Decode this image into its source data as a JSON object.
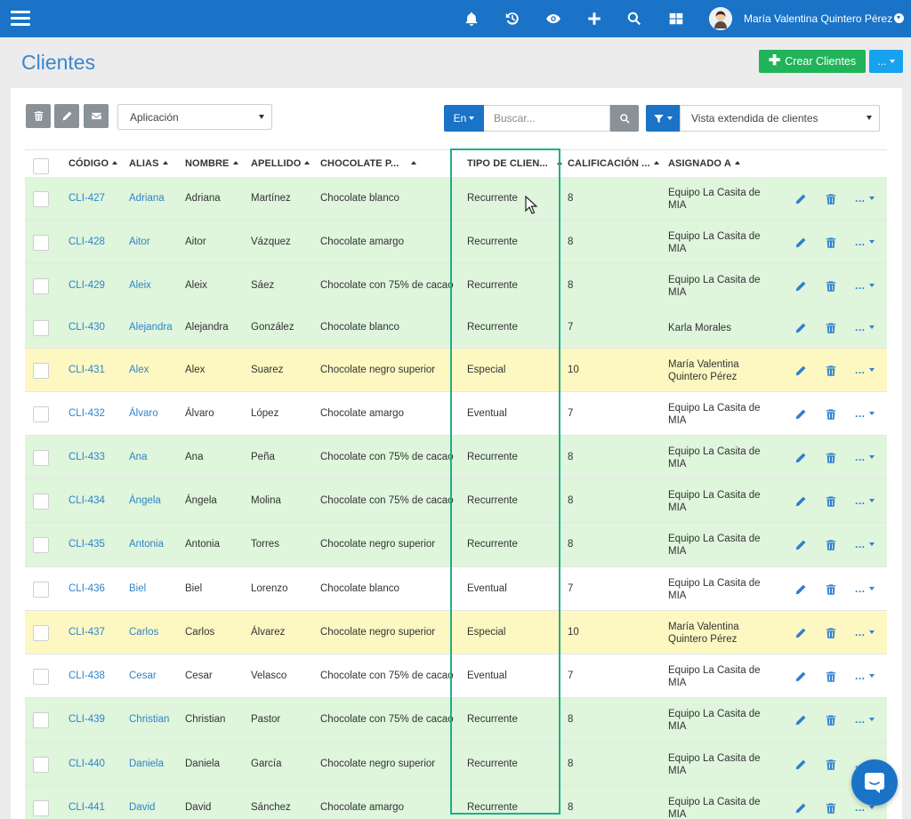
{
  "colors": {
    "topbar": "#1a73c6",
    "accent_green": "#21b35a",
    "row_green": "#dff5dc",
    "row_yellow": "#fdf8c2",
    "highlight": "#1fae8b"
  },
  "topbar": {
    "icons": [
      "bell-icon",
      "history-icon",
      "eye-icon",
      "plus-icon",
      "search-icon",
      "grid-icon"
    ],
    "user_name": "María Valentina Quintero Pérez"
  },
  "header": {
    "title": "Clientes",
    "create_label": "Crear Clientes",
    "more_label": "..."
  },
  "toolbar": {
    "app_select": "Aplicación",
    "search_scope": "En",
    "search_placeholder": "Buscar...",
    "view_select": "Vista extendida de clientes"
  },
  "table": {
    "columns": [
      "CÓDIGO",
      "ALIAS",
      "NOMBRE",
      "APELLIDO",
      "CHOCOLATE P...",
      "TIPO DE CLIEN...",
      "CALIFICACIÓN ...",
      "ASIGNADO A"
    ],
    "more_label": "...",
    "rows": [
      {
        "code": "CLI-427",
        "alias": "Adriana",
        "nombre": "Adriana",
        "apellido": "Martínez",
        "chocolate": "Chocolate blanco",
        "tipo": "Recurrente",
        "calif": "8",
        "asignado": "Equipo La Casita de MIA",
        "color": "green"
      },
      {
        "code": "CLI-428",
        "alias": "Aitor",
        "nombre": "Aitor",
        "apellido": "Vázquez",
        "chocolate": "Chocolate amargo",
        "tipo": "Recurrente",
        "calif": "8",
        "asignado": "Equipo La Casita de MIA",
        "color": "green"
      },
      {
        "code": "CLI-429",
        "alias": "Aleix",
        "nombre": "Aleix",
        "apellido": "Sáez",
        "chocolate": "Chocolate con 75% de cacao",
        "tipo": "Recurrente",
        "calif": "8",
        "asignado": "Equipo La Casita de MIA",
        "color": "green"
      },
      {
        "code": "CLI-430",
        "alias": "Alejandra",
        "nombre": "Alejandra",
        "apellido": "González",
        "chocolate": "Chocolate blanco",
        "tipo": "Recurrente",
        "calif": "7",
        "asignado": "Karla Morales",
        "color": "green"
      },
      {
        "code": "CLI-431",
        "alias": "Alex",
        "nombre": "Alex",
        "apellido": "Suarez",
        "chocolate": "Chocolate negro superior",
        "tipo": "Especial",
        "calif": "10",
        "asignado": "María Valentina Quintero Pérez",
        "color": "yellow"
      },
      {
        "code": "CLI-432",
        "alias": "Álvaro",
        "nombre": "Álvaro",
        "apellido": "López",
        "chocolate": "Chocolate amargo",
        "tipo": "Eventual",
        "calif": "7",
        "asignado": "Equipo La Casita de MIA",
        "color": "white"
      },
      {
        "code": "CLI-433",
        "alias": "Ana",
        "nombre": "Ana",
        "apellido": "Peña",
        "chocolate": "Chocolate con 75% de cacao",
        "tipo": "Recurrente",
        "calif": "8",
        "asignado": "Equipo La Casita de MIA",
        "color": "green"
      },
      {
        "code": "CLI-434",
        "alias": "Ángela",
        "nombre": "Ángela",
        "apellido": "Molina",
        "chocolate": "Chocolate con 75% de cacao",
        "tipo": "Recurrente",
        "calif": "8",
        "asignado": "Equipo La Casita de MIA",
        "color": "green"
      },
      {
        "code": "CLI-435",
        "alias": "Antonia",
        "nombre": "Antonia",
        "apellido": "Torres",
        "chocolate": "Chocolate negro superior",
        "tipo": "Recurrente",
        "calif": "8",
        "asignado": "Equipo La Casita de MIA",
        "color": "green"
      },
      {
        "code": "CLI-436",
        "alias": "Biel",
        "nombre": "Biel",
        "apellido": "Lorenzo",
        "chocolate": "Chocolate blanco",
        "tipo": "Eventual",
        "calif": "7",
        "asignado": "Equipo La Casita de MIA",
        "color": "white"
      },
      {
        "code": "CLI-437",
        "alias": "Carlos",
        "nombre": "Carlos",
        "apellido": "Álvarez",
        "chocolate": "Chocolate negro superior",
        "tipo": "Especial",
        "calif": "10",
        "asignado": "María Valentina Quintero Pérez",
        "color": "yellow"
      },
      {
        "code": "CLI-438",
        "alias": "Cesar",
        "nombre": "Cesar",
        "apellido": "Velasco",
        "chocolate": "Chocolate con 75% de cacao",
        "tipo": "Eventual",
        "calif": "7",
        "asignado": "Equipo La Casita de MIA",
        "color": "white"
      },
      {
        "code": "CLI-439",
        "alias": "Christian",
        "nombre": "Christian",
        "apellido": "Pastor",
        "chocolate": "Chocolate con 75% de cacao",
        "tipo": "Recurrente",
        "calif": "8",
        "asignado": "Equipo La Casita de MIA",
        "color": "green"
      },
      {
        "code": "CLI-440",
        "alias": "Daniela",
        "nombre": "Daniela",
        "apellido": "García",
        "chocolate": "Chocolate negro superior",
        "tipo": "Recurrente",
        "calif": "8",
        "asignado": "Equipo La Casita de MIA",
        "color": "green"
      },
      {
        "code": "CLI-441",
        "alias": "David",
        "nombre": "David",
        "apellido": "Sánchez",
        "chocolate": "Chocolate amargo",
        "tipo": "Recurrente",
        "calif": "8",
        "asignado": "Equipo La Casita de MIA",
        "color": "green"
      }
    ]
  }
}
